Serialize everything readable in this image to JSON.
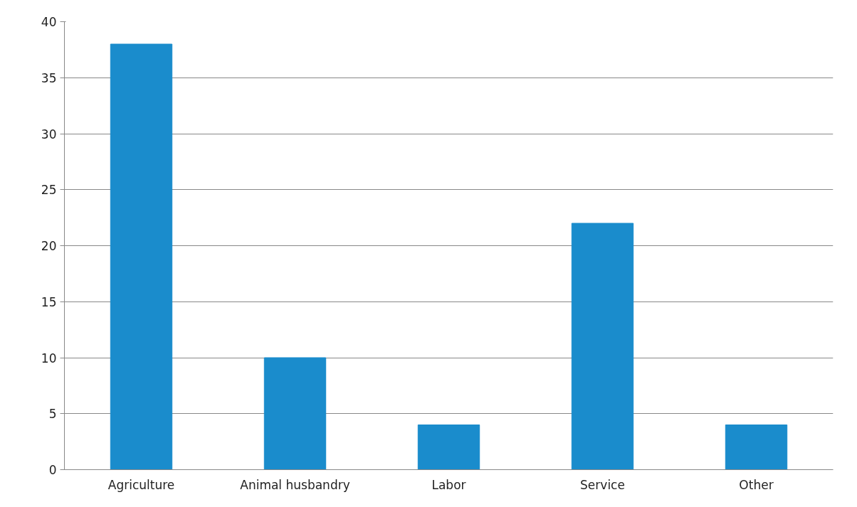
{
  "chart_data": {
    "type": "bar",
    "categories": [
      "Agriculture",
      "Animal husbandry",
      "Labor",
      "Service",
      "Other"
    ],
    "values": [
      38,
      10,
      4,
      22,
      4
    ],
    "color": "#1a8ccc",
    "ylim": [
      0,
      40
    ],
    "yticks": [
      0,
      5,
      10,
      15,
      20,
      25,
      30,
      35,
      40
    ],
    "grid": "y"
  }
}
